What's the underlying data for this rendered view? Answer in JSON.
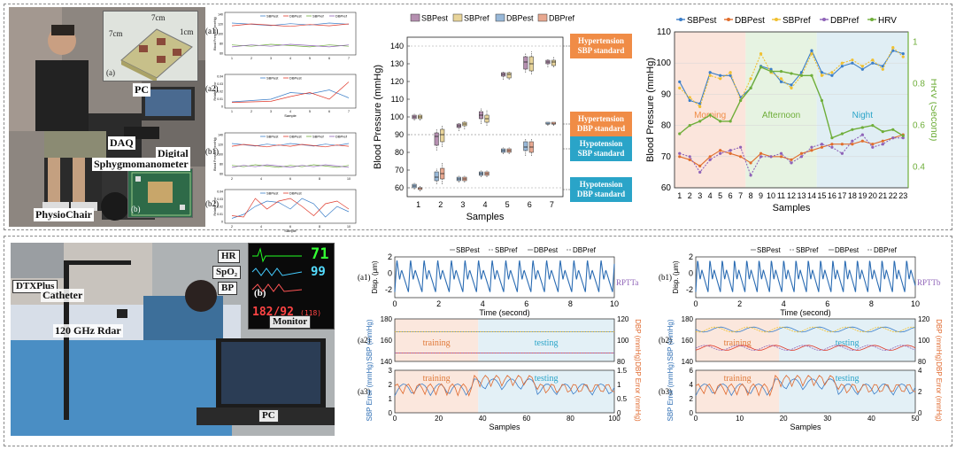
{
  "top_photo": {
    "labels": {
      "pc": "PC",
      "daq": "DAQ",
      "digital": "Digital",
      "sphyg": "Sphygmomanometer",
      "physiochair": "PhysioChair"
    },
    "inset_a": {
      "tag": "(a)",
      "d1": "7cm",
      "d2": "7cm",
      "d3": "1cm"
    },
    "inset_b": {
      "tag": "(b)"
    }
  },
  "bottom_photo": {
    "labels": {
      "dtxp": "DTXPlus",
      "catheter": "Catheter",
      "radar": "120 GHz Rdar",
      "pc": "PC",
      "monitor": "Monitor",
      "hr": "HR",
      "spo2": "SpO₂",
      "bp": "BP"
    },
    "monitor_values": {
      "hr": "71",
      "spo2": "99",
      "bp": "182/92",
      "bp_small": "(118)"
    },
    "inset_tag": "(b)"
  },
  "small_panels": [
    {
      "tag": "(a1)",
      "legend": [
        "SBPest",
        "DBPest",
        "SBPref",
        "DBPref"
      ],
      "ylabel": "Blood Pressure (mmHg)",
      "yticks": [
        "140",
        "120",
        "100",
        "80",
        "60"
      ],
      "xticks": [
        "1",
        "2",
        "3",
        "4",
        "5",
        "6",
        "7"
      ]
    },
    {
      "tag": "(a2)",
      "legend": [
        "SBPest",
        "DBPest"
      ],
      "ylabel": "Relative error",
      "yticks": [
        "0.04",
        "0.03",
        "0.02",
        "0.01",
        "0"
      ],
      "xticks": [
        "1",
        "2",
        "3",
        "4",
        "5",
        "6",
        "7"
      ],
      "xlabel": "Sample"
    },
    {
      "tag": "(b1)",
      "legend": [
        "SBPest",
        "DBPest",
        "SBPref",
        "DBPref"
      ],
      "ylabel": "Blood Pressure (mmHg)",
      "yticks": [
        "140",
        "120",
        "100",
        "80",
        "60"
      ],
      "xticks": [
        "2",
        "4",
        "6",
        "8",
        "10"
      ]
    },
    {
      "tag": "(b2)",
      "legend": [
        "SBPest",
        "DBPest"
      ],
      "ylabel": "Relative error",
      "yticks": [
        "0.04",
        "0.03",
        "0.02",
        "0.01",
        "0"
      ],
      "xticks": [
        "2",
        "4",
        "6",
        "8",
        "10"
      ],
      "xlabel": "Sample"
    }
  ],
  "chart_data": [
    {
      "type": "box",
      "legend": [
        "SBPest",
        "SBPref",
        "DBPest",
        "DBPref"
      ],
      "colors": {
        "SBPest": "#b58fb0",
        "SBPref": "#e8d49a",
        "DBPest": "#98b8d8",
        "DBPref": "#e8a890"
      },
      "xlabel": "Samples",
      "ylabel": "Blood Pressure (mmHg)",
      "xlim": [
        0.5,
        7.5
      ],
      "ylim": [
        55,
        145
      ],
      "xticks": [
        1,
        2,
        3,
        4,
        5,
        6,
        7
      ],
      "yticks": [
        60,
        70,
        80,
        90,
        100,
        110,
        120,
        130,
        140
      ],
      "threshold_lines": [
        140,
        90,
        90,
        60
      ],
      "annotations": [
        "Hypertension SBP standard",
        "Hypertension DBP standard",
        "Hypotension SBP standard",
        "Hypotension DBP standard"
      ],
      "boxes": [
        {
          "x": 1,
          "s": [
            [
              98,
              99,
              100,
              101,
              102
            ],
            [
              98,
              99,
              100,
              101,
              102
            ]
          ],
          "d": [
            [
              59,
              60,
              61,
              62,
              63
            ],
            [
              58,
              59,
              60,
              60,
              61
            ]
          ]
        },
        {
          "x": 2,
          "s": [
            [
              81,
              84,
              89,
              91,
              93
            ],
            [
              83,
              86,
              90,
              93,
              95
            ]
          ],
          "d": [
            [
              62,
              64,
              66,
              69,
              71
            ],
            [
              62,
              65,
              68,
              71,
              74
            ]
          ]
        },
        {
          "x": 3,
          "s": [
            [
              92,
              94,
              95,
              96,
              97
            ],
            [
              93,
              95,
              96,
              97,
              98
            ]
          ],
          "d": [
            [
              63,
              64,
              65,
              66,
              67
            ],
            [
              63,
              64,
              65,
              66,
              67
            ]
          ]
        },
        {
          "x": 4,
          "s": [
            [
              96,
              99,
              101,
              103,
              105
            ],
            [
              95,
              97,
              99,
              101,
              104
            ]
          ],
          "d": [
            [
              66,
              67,
              68,
              69,
              70
            ],
            [
              66,
              67,
              68,
              69,
              70
            ]
          ]
        },
        {
          "x": 5,
          "s": [
            [
              121,
              123,
              124,
              125,
              126
            ],
            [
              121,
              122,
              124,
              125,
              126
            ]
          ],
          "d": [
            [
              79,
              80,
              81,
              82,
              83
            ],
            [
              79,
              80,
              81,
              82,
              83
            ]
          ]
        },
        {
          "x": 6,
          "s": [
            [
              125,
              127,
              131,
              134,
              136
            ],
            [
              124,
              126,
              130,
              134,
              137
            ]
          ],
          "d": [
            [
              78,
              81,
              83,
              86,
              88
            ],
            [
              78,
              80,
              83,
              86,
              88
            ]
          ]
        },
        {
          "x": 7,
          "s": [
            [
              128,
              130,
              131,
              132,
              133
            ],
            [
              128,
              129,
              131,
              132,
              134
            ]
          ],
          "d": [
            [
              95,
              96,
              96,
              97,
              97
            ],
            [
              95,
              96,
              96,
              97,
              97
            ]
          ]
        }
      ]
    },
    {
      "type": "line",
      "legend": [
        "SBPest",
        "DBPest",
        "SBPref",
        "DBPref",
        "HRV"
      ],
      "colors": {
        "SBPest": "#3b7ec8",
        "DBPest": "#e06d2c",
        "SBPref": "#f0c030",
        "DBPref": "#8f63b8",
        "HRV": "#6fae3a"
      },
      "xlabel": "Samples",
      "ylabel": "Blood Pressure (mmHg)",
      "y2label": "HRV (Second)",
      "x": [
        1,
        2,
        3,
        4,
        5,
        6,
        7,
        8,
        9,
        10,
        11,
        12,
        13,
        14,
        15,
        16,
        17,
        18,
        19,
        20,
        21,
        22,
        23
      ],
      "ylim": [
        60,
        110
      ],
      "y2lim": [
        0.3,
        1.05
      ],
      "yticks": [
        60,
        70,
        80,
        90,
        100,
        110
      ],
      "y2ticks": [
        0.4,
        0.6,
        0.8,
        1
      ],
      "regions": [
        {
          "label": "Morning",
          "from": 0.5,
          "to": 7.5
        },
        {
          "label": "Afternoon",
          "from": 7.5,
          "to": 14.5
        },
        {
          "label": "Night",
          "from": 14.5,
          "to": 23.5
        }
      ],
      "series": [
        {
          "name": "SBPest",
          "values": [
            94,
            88,
            87,
            97,
            96,
            96,
            89,
            92,
            99,
            98,
            94,
            93,
            97,
            104,
            97,
            96,
            99,
            100,
            98,
            100,
            99,
            104,
            103
          ]
        },
        {
          "name": "SBPref",
          "values": [
            92,
            89,
            86,
            96,
            95,
            97,
            88,
            95,
            103,
            97,
            95,
            92,
            96,
            103,
            96,
            97,
            100,
            101,
            99,
            101,
            98,
            105,
            102
          ]
        },
        {
          "name": "DBPest",
          "values": [
            70,
            69,
            67,
            70,
            72,
            71,
            70,
            68,
            71,
            70,
            70,
            69,
            71,
            72,
            73,
            74,
            74,
            74,
            75,
            74,
            75,
            76,
            77
          ]
        },
        {
          "name": "DBPref",
          "values": [
            71,
            70,
            65,
            69,
            71,
            72,
            73,
            64,
            70,
            70,
            71,
            68,
            70,
            73,
            74,
            73,
            71,
            75,
            77,
            73,
            74,
            76,
            76
          ]
        },
        {
          "name": "HRV",
          "values": [
            0.56,
            0.6,
            0.62,
            0.65,
            0.62,
            0.62,
            0.72,
            0.78,
            0.88,
            0.86,
            0.86,
            0.85,
            0.84,
            0.84,
            0.72,
            0.54,
            0.56,
            0.58,
            0.59,
            0.6,
            0.57,
            0.58,
            0.55
          ]
        }
      ]
    },
    {
      "type": "line",
      "panel": "(a1)",
      "ylabel": "Disp. (μm)",
      "xlabel": "Time (second)",
      "ylim": [
        -3,
        2
      ],
      "yticks": [
        -2,
        0,
        2
      ],
      "xlim": [
        0,
        10
      ],
      "xticks": [
        0,
        2,
        4,
        6,
        8,
        10
      ],
      "series": [
        {
          "name": "Displacement",
          "period_s": 0.62,
          "amplitude_um": 2
        }
      ],
      "annotation": "RPTTa"
    },
    {
      "type": "line",
      "panel": "(b1)",
      "ylabel": "Disp. (μm)",
      "xlabel": "Time (second)",
      "ylim": [
        -3,
        2
      ],
      "yticks": [
        -2,
        0,
        2
      ],
      "xlim": [
        0,
        10
      ],
      "xticks": [
        0,
        2,
        4,
        6,
        8,
        10
      ],
      "series": [
        {
          "name": "Displacement",
          "period_s": 0.56,
          "amplitude_um": 2
        }
      ],
      "annotation": "RPTTb"
    },
    {
      "type": "line",
      "panel": "(a2)",
      "legend": [
        "SBPest",
        "SBPref",
        "DBPest",
        "DBPref"
      ],
      "ylabel": "SBP (mmHg)",
      "y2label": "DBP (mmHg)",
      "ylim": [
        140,
        180
      ],
      "yticks": [
        140,
        160,
        180
      ],
      "y2ticks": [
        80,
        100,
        120
      ],
      "regions": [
        "training",
        "testing"
      ],
      "sbp": 170,
      "dbp": 91
    },
    {
      "type": "line",
      "panel": "(a3)",
      "ylabel": "SBP Error (mmHg)",
      "y2label": "DBP Error (mmHg)",
      "xlabel": "Samples",
      "yticks": [
        0,
        1,
        2,
        3
      ],
      "y2ticks": [
        0,
        0.5,
        1,
        1.5
      ],
      "xticks": [
        0,
        20,
        40,
        60,
        80,
        100
      ],
      "regions": [
        "training",
        "testing"
      ]
    },
    {
      "type": "line",
      "panel": "(b2)",
      "ylabel": "SBP (mmHg)",
      "y2label": "DBP (mmHg)",
      "ylim": [
        140,
        180
      ],
      "yticks": [
        140,
        160,
        180
      ],
      "y2ticks": [
        80,
        100,
        120
      ],
      "regions": [
        "training",
        "testing"
      ]
    },
    {
      "type": "line",
      "panel": "(b3)",
      "ylabel": "SBP Error (mmHg)",
      "y2label": "DBP Error (mmHg)",
      "xlabel": "Samples",
      "yticks": [
        0,
        2,
        4,
        6
      ],
      "y2ticks": [
        0,
        2,
        4
      ],
      "xticks": [
        0,
        10,
        20,
        30,
        40,
        50
      ],
      "regions": [
        "training",
        "testing"
      ]
    }
  ]
}
